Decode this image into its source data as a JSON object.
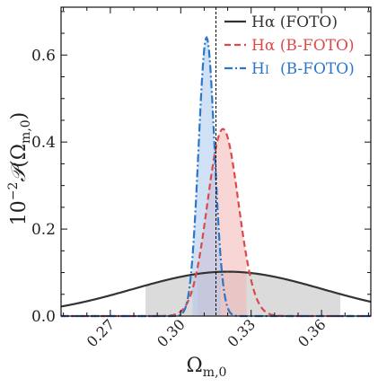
{
  "chart_data": {
    "type": "line",
    "xlabel": "Ω",
    "xlabel_sub": "m,0",
    "ylabel_prefix": "10",
    "ylabel_exp": "−2",
    "ylabel_p": "𝒫",
    "ylabel_arg": "(Ω",
    "ylabel_arg_sub": "m,0",
    "ylabel_close": ")",
    "xlim": [
      0.249,
      0.381
    ],
    "ylim": [
      0.0,
      0.71
    ],
    "x_ticks": [
      0.27,
      0.3,
      0.33,
      0.36
    ],
    "x_tick_labels": [
      "0.27",
      "0.30",
      "0.33",
      "0.36"
    ],
    "y_ticks": [
      0.0,
      0.2,
      0.4,
      0.6
    ],
    "y_tick_labels": [
      "0.0",
      "0.2",
      "0.4",
      "0.6"
    ],
    "reference_line_x": 0.315,
    "legend_position": "top-right",
    "series": [
      {
        "name": "Hα (FOTO)",
        "color": "#333333",
        "fill": "#bdbdbd",
        "line_style": "solid",
        "mean": 0.32,
        "sigma": 0.0405,
        "peak": 0.102,
        "band": [
          0.285,
          0.368
        ]
      },
      {
        "name": "Hα (B-FOTO)",
        "color": "#e04848",
        "fill": "#f4b4b4",
        "line_style": "dashed",
        "mean": 0.318,
        "sigma": 0.0066,
        "peak": 0.43,
        "band": [
          0.307,
          0.328
        ]
      },
      {
        "name": "H",
        "name_suffix": "I",
        "name_rest": "(B-FOTO)",
        "color": "#2a77c9",
        "fill": "#a9c9ee",
        "line_style": "dashdot",
        "mean": 0.311,
        "sigma": 0.0034,
        "peak": 0.64,
        "band": [
          0.305,
          0.317
        ]
      }
    ]
  }
}
